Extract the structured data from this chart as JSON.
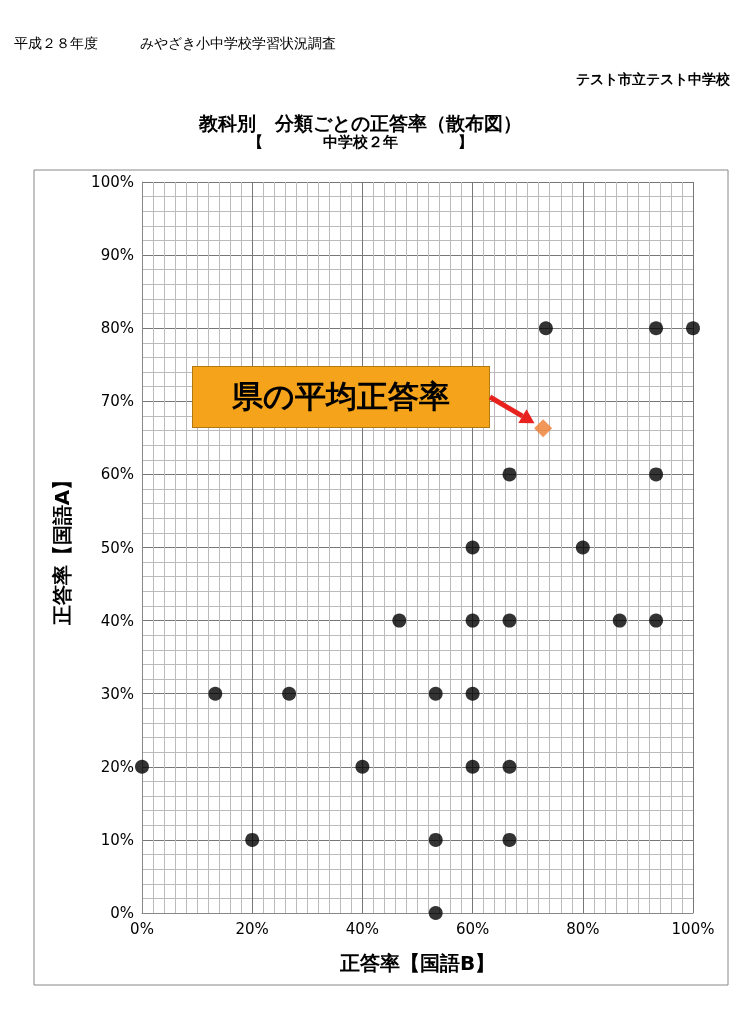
{
  "chart_data": {
    "type": "scatter",
    "title": "教科別　分類ごとの正答率（散布図）",
    "subtitle": "【　　　　中学校２年　　　　】",
    "xlabel": "正答率【国語B】",
    "ylabel": "正答率【国語A】",
    "annotations": [
      "平成２８年度　　　みやざき小中学校学習状況調査",
      "テスト市立テスト中学校",
      "県の平均正答率"
    ],
    "series": [
      {
        "color": "#000000",
        "marker": "circle",
        "x": [
          73.3,
          93.3,
          100,
          66.7,
          93.3,
          60,
          80,
          46.7,
          60,
          66.7,
          86.7,
          93.3,
          13.3,
          26.7,
          53.3,
          60,
          0,
          40,
          60,
          66.7,
          20,
          53.3,
          66.7,
          53.3
        ],
        "values": [
          80,
          80,
          80,
          60,
          60,
          50,
          50,
          40,
          40,
          40,
          40,
          40,
          30,
          30,
          30,
          30,
          20,
          20,
          20,
          20,
          10,
          10,
          10,
          0
        ]
      },
      {
        "color": "#ed7d31",
        "marker": "diamond",
        "x": [
          72.8
        ],
        "values": [
          66.3
        ]
      }
    ],
    "xlim": [
      0,
      100
    ],
    "ylim": [
      0,
      100
    ],
    "xticks": [
      {
        "value": 0,
        "label": "0%"
      },
      {
        "value": 20,
        "label": "20%"
      },
      {
        "value": 40,
        "label": "40%"
      },
      {
        "value": 60,
        "label": "60%"
      },
      {
        "value": 80,
        "label": "80%"
      },
      {
        "value": 100,
        "label": "100%"
      }
    ],
    "yticks": [
      {
        "value": 0,
        "label": "0%"
      },
      {
        "value": 10,
        "label": "10%"
      },
      {
        "value": 20,
        "label": "20%"
      },
      {
        "value": 30,
        "label": "30%"
      },
      {
        "value": 40,
        "label": "40%"
      },
      {
        "value": 50,
        "label": "50%"
      },
      {
        "value": 60,
        "label": "60%"
      },
      {
        "value": 70,
        "label": "70%"
      },
      {
        "value": 80,
        "label": "80%"
      },
      {
        "value": 90,
        "label": "90%"
      },
      {
        "value": 100,
        "label": "100%"
      }
    ],
    "grid": true
  }
}
